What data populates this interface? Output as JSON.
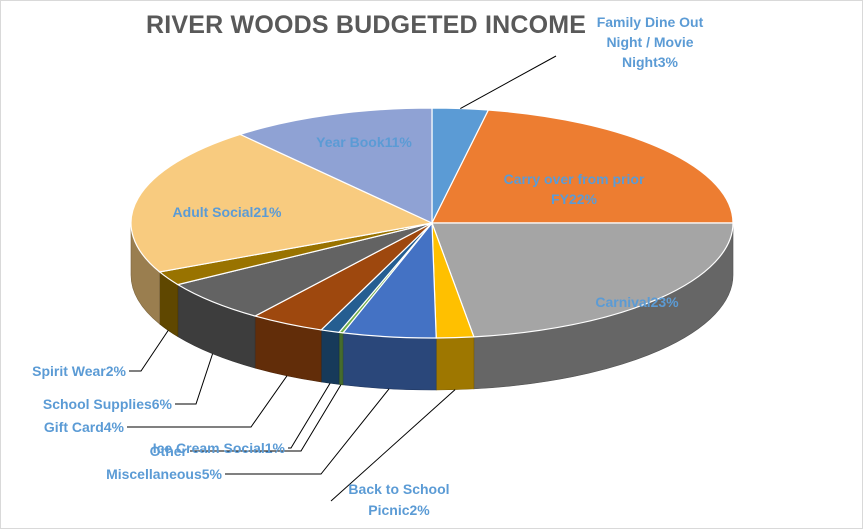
{
  "chart_data": {
    "type": "pie",
    "style": "3d",
    "title": "RIVER WOODS BUDGETED INCOME",
    "slices": [
      {
        "name": "Family Dine Out Night / Movie Night",
        "value": 3,
        "label_lines": [
          "Family Dine Out",
          "Night / Movie",
          "Night3%"
        ],
        "color": "#5b9bd5",
        "label_color": "#5b9bd5",
        "label_placement": "outside"
      },
      {
        "name": "Carry over from prior FY",
        "value": 22,
        "label_lines": [
          "Carry over from prior",
          "FY22%"
        ],
        "color": "#ed7d31",
        "label_color": "#5b9bd5",
        "label_placement": "inside"
      },
      {
        "name": "Carnival",
        "value": 23,
        "label_lines": [
          "Carnival23%"
        ],
        "color": "#a5a5a5",
        "label_color": "#5b9bd5",
        "label_placement": "inside"
      },
      {
        "name": "Back to School Picnic",
        "value": 2,
        "label_lines": [
          "Back to School",
          "Picnic2%"
        ],
        "color": "#ffc000",
        "label_color": "#5b9bd5",
        "label_placement": "outside"
      },
      {
        "name": "Miscellaneous",
        "value": 5,
        "label_lines": [
          "Miscellaneous5%"
        ],
        "color": "#4472c4",
        "label_color": "#5b9bd5",
        "label_placement": "outside"
      },
      {
        "name": "Other",
        "value": 0,
        "label_lines": [
          "Other"
        ],
        "color": "#70ad47",
        "label_color": "#5b9bd5",
        "label_placement": "outside"
      },
      {
        "name": "Ice Cream Social",
        "value": 1,
        "label_lines": [
          "Ice Cream Social1%"
        ],
        "color": "#255e91",
        "label_color": "#5b9bd5",
        "label_placement": "outside"
      },
      {
        "name": "Gift Card",
        "value": 4,
        "label_lines": [
          "Gift Card4%"
        ],
        "color": "#9e480e",
        "label_color": "#5b9bd5",
        "label_placement": "outside"
      },
      {
        "name": "School Supplies",
        "value": 6,
        "label_lines": [
          "School Supplies6%"
        ],
        "color": "#636363",
        "label_color": "#5b9bd5",
        "label_placement": "outside"
      },
      {
        "name": "Spirit Wear",
        "value": 2,
        "label_lines": [
          "Spirit Wear2%"
        ],
        "color": "#997300",
        "label_color": "#5b9bd5",
        "label_placement": "outside"
      },
      {
        "name": "Adult Social",
        "value": 21,
        "label_lines": [
          "Adult Social21%"
        ],
        "color": "#f8cb7f",
        "label_color": "#5b9bd5",
        "label_placement": "inside"
      },
      {
        "name": "Year Book",
        "value": 11,
        "label_lines": [
          "Year Book11%"
        ],
        "color": "#8fa2d4",
        "label_color": "#5b9bd5",
        "label_placement": "inside"
      }
    ],
    "legend": "none",
    "colors": {
      "title": "#595959",
      "label": "#5b9bd5",
      "leader_line": "#000000"
    }
  }
}
